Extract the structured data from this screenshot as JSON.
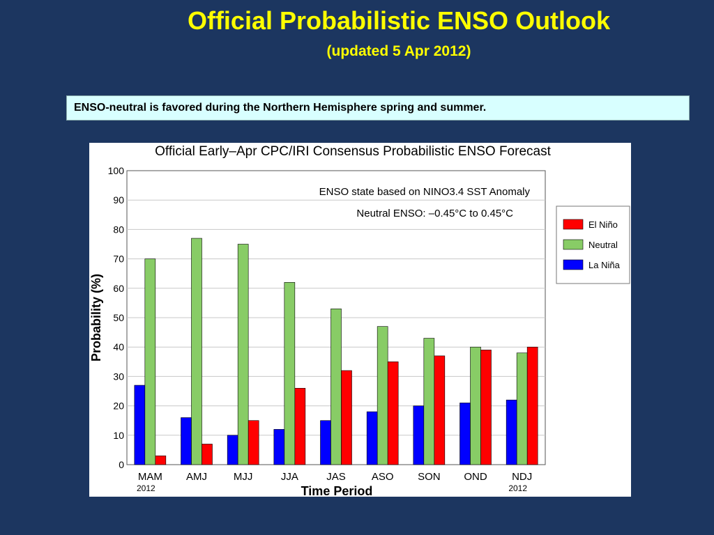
{
  "slide": {
    "title": "Official Probabilistic ENSO Outlook",
    "subtitle": "(updated 5 Apr 2012)",
    "summary": "ENSO-neutral is favored during the Northern Hemisphere spring and summer."
  },
  "chart_data": {
    "type": "bar",
    "title": "Official Early–Apr CPC/IRI Consensus Probabilistic ENSO Forecast",
    "annotation_line1": "ENSO state based on NINO3.4 SST Anomaly",
    "annotation_line2": "Neutral ENSO: –0.45°C to 0.45°C",
    "xlabel": "Time Period",
    "ylabel": "Probability (%)",
    "ylim": [
      0,
      100
    ],
    "yticks": [
      0,
      10,
      20,
      30,
      40,
      50,
      60,
      70,
      80,
      90,
      100
    ],
    "grid": true,
    "legend_position": "right",
    "categories": [
      "MAM",
      "AMJ",
      "MJJ",
      "JJA",
      "JAS",
      "ASO",
      "SON",
      "OND",
      "NDJ"
    ],
    "category_sublabels": [
      "2012",
      "",
      "",
      "",
      "",
      "",
      "",
      "",
      "2012"
    ],
    "series": [
      {
        "name": "La Niña",
        "color": "#0000ff",
        "values": [
          27,
          16,
          10,
          12,
          15,
          18,
          20,
          21,
          22
        ]
      },
      {
        "name": "Neutral",
        "color": "#88cc66",
        "values": [
          70,
          77,
          75,
          62,
          53,
          47,
          43,
          40,
          38
        ]
      },
      {
        "name": "El Niño",
        "color": "#ff0000",
        "values": [
          3,
          7,
          15,
          26,
          32,
          35,
          37,
          39,
          40
        ]
      }
    ],
    "legend_order": [
      "El Niño",
      "Neutral",
      "La Niña"
    ]
  }
}
